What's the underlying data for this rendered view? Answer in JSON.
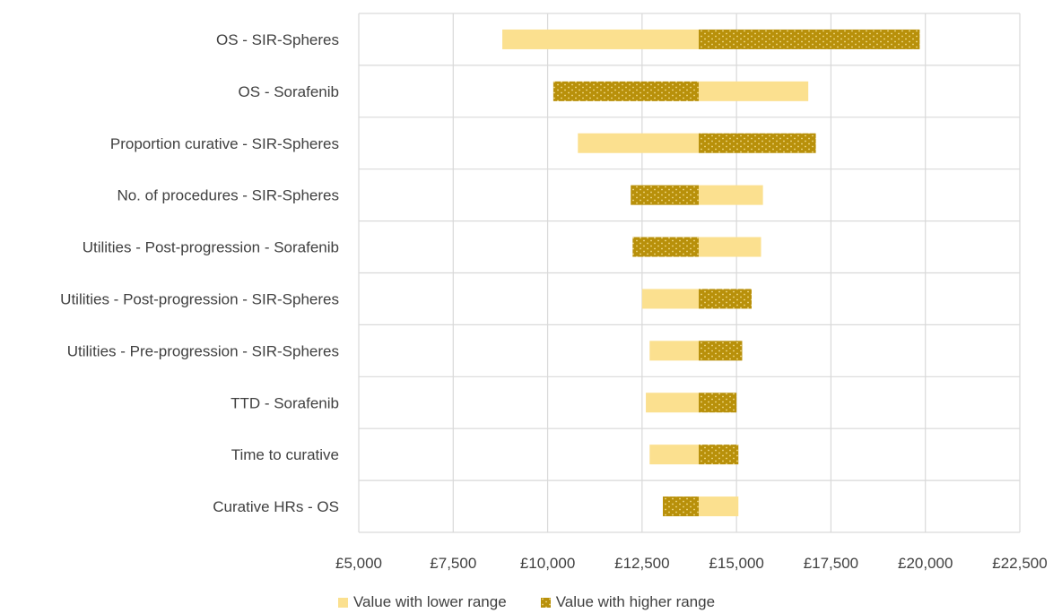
{
  "chart_data": {
    "type": "bar",
    "orientation": "horizontal",
    "variant": "tornado",
    "base_value": 14000,
    "categories": [
      "OS - SIR-Spheres",
      "OS - Sorafenib",
      "Proportion curative - SIR-Spheres",
      "No. of procedures - SIR-Spheres",
      "Utilities - Post-progression - Sorafenib",
      "Utilities - Post-progression - SIR-Spheres",
      "Utilities - Pre-progression - SIR-Spheres",
      "TTD - Sorafenib",
      "Time to curative",
      "Curative HRs - OS"
    ],
    "series": [
      {
        "name": "Value with lower range",
        "color": "#FBE08F",
        "values": [
          8800,
          16900,
          10800,
          15700,
          15650,
          12500,
          12700,
          12600,
          12700,
          15050
        ]
      },
      {
        "name": "Value with higher range",
        "color": "#B8900A",
        "pattern": "dotted",
        "values": [
          19850,
          10150,
          17100,
          12200,
          12250,
          15400,
          15150,
          15000,
          15050,
          13050
        ]
      }
    ],
    "xlim": [
      5000,
      22500
    ],
    "xticks": [
      5000,
      7500,
      10000,
      12500,
      15000,
      17500,
      20000,
      22500
    ],
    "xtick_labels": [
      "£5,000",
      "£7,500",
      "£10,000",
      "£12,500",
      "£15,000",
      "£17,500",
      "£20,000",
      "£22,500"
    ],
    "grid": true,
    "legend_position": "bottom"
  }
}
